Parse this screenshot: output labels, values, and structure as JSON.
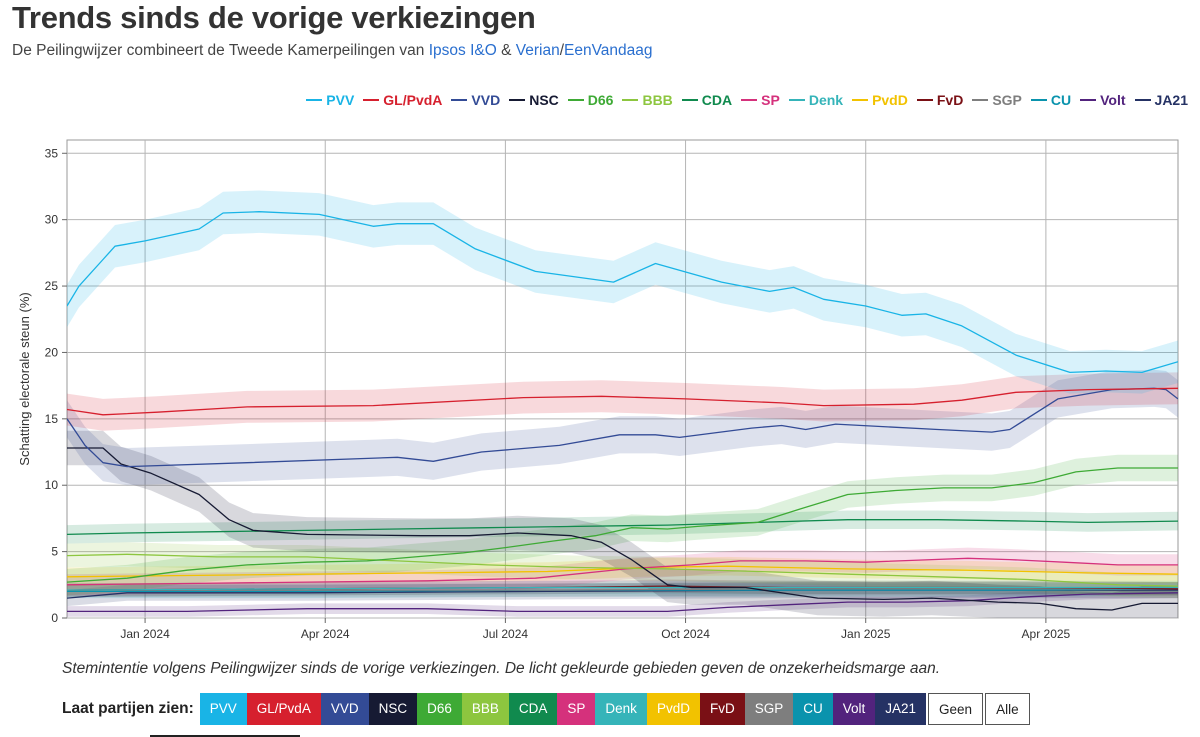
{
  "title": "Trends sinds de vorige verkiezingen",
  "subtitle": {
    "prefix": "De Peilingwijzer combineert de Tweede Kamerpeilingen van",
    "source1": "Ipsos I&O",
    "amp": "&",
    "source2": "Verian",
    "slash": "/",
    "source3": "EenVandaag"
  },
  "parties": [
    {
      "name": "PVV",
      "color": "#19b4e6"
    },
    {
      "name": "GL/PvdA",
      "color": "#d6202e"
    },
    {
      "name": "VVD",
      "color": "#334b96"
    },
    {
      "name": "NSC",
      "color": "#161a33"
    },
    {
      "name": "D66",
      "color": "#3eaa35"
    },
    {
      "name": "BBB",
      "color": "#8dc63f"
    },
    {
      "name": "CDA",
      "color": "#108a4e"
    },
    {
      "name": "SP",
      "color": "#d5317c"
    },
    {
      "name": "Denk",
      "color": "#35b4b9"
    },
    {
      "name": "PvdD",
      "color": "#f2c200"
    },
    {
      "name": "FvD",
      "color": "#7a1015"
    },
    {
      "name": "SGP",
      "color": "#7e7e7e"
    },
    {
      "name": "CU",
      "color": "#0a93ad"
    },
    {
      "name": "Volt",
      "color": "#52237d"
    },
    {
      "name": "JA21",
      "color": "#253264"
    }
  ],
  "filter_label": "Laat partijen zien:",
  "filter_extra": [
    "Geen",
    "Alle"
  ],
  "caption": "Stemintentie volgens Peilingwijzer sinds de vorige verkiezingen. De licht gekleurde gebieden geven de onzekerheidsmarge aan.",
  "chart_data": {
    "type": "line",
    "title": "Trends sinds de vorige verkiezingen",
    "xlabel": "",
    "ylabel": "Schatting electorale steun (%)",
    "x_unit": "months since 2023-11-22",
    "xlim": [
      0,
      18.5
    ],
    "ylim": [
      0,
      36
    ],
    "yticks": [
      0,
      5,
      10,
      15,
      20,
      25,
      30,
      35
    ],
    "xticks": [
      {
        "x": 1.3,
        "label": "Jan 2024"
      },
      {
        "x": 4.3,
        "label": "Apr 2024"
      },
      {
        "x": 7.3,
        "label": "Jul 2024"
      },
      {
        "x": 10.3,
        "label": "Oct 2024"
      },
      {
        "x": 13.3,
        "label": "Jan 2025"
      },
      {
        "x": 16.3,
        "label": "Apr 2025"
      }
    ],
    "band_note": "De licht gekleurde gebieden geven de onzekerheidsmarge aan.",
    "series": [
      {
        "name": "PVV",
        "margin": 1.6,
        "points": [
          [
            0,
            23.5
          ],
          [
            0.2,
            25
          ],
          [
            0.6,
            27
          ],
          [
            0.8,
            28
          ],
          [
            1.3,
            28.4
          ],
          [
            2.2,
            29.3
          ],
          [
            2.6,
            30.5
          ],
          [
            3.2,
            30.6
          ],
          [
            4.2,
            30.4
          ],
          [
            5.1,
            29.5
          ],
          [
            5.5,
            29.7
          ],
          [
            6.1,
            29.7
          ],
          [
            6.8,
            27.8
          ],
          [
            7.8,
            26.1
          ],
          [
            9.1,
            25.3
          ],
          [
            9.8,
            26.7
          ],
          [
            10.9,
            25.3
          ],
          [
            11.7,
            24.6
          ],
          [
            12.1,
            24.9
          ],
          [
            12.6,
            24
          ],
          [
            13.3,
            23.5
          ],
          [
            13.9,
            22.8
          ],
          [
            14.3,
            22.9
          ],
          [
            14.9,
            22
          ],
          [
            15.8,
            19.8
          ],
          [
            16.7,
            18.5
          ],
          [
            17.3,
            18.6
          ],
          [
            17.9,
            18.5
          ],
          [
            18.5,
            19.3
          ]
        ]
      },
      {
        "name": "GL/PvdA",
        "margin": 1.2,
        "points": [
          [
            0,
            15.7
          ],
          [
            0.6,
            15.3
          ],
          [
            1.5,
            15.5
          ],
          [
            3,
            15.9
          ],
          [
            5.1,
            16
          ],
          [
            7.6,
            16.6
          ],
          [
            8.9,
            16.7
          ],
          [
            10.3,
            16.5
          ],
          [
            11.9,
            16.2
          ],
          [
            12.6,
            16
          ],
          [
            14.1,
            16.1
          ],
          [
            14.9,
            16.4
          ],
          [
            15.8,
            17
          ],
          [
            17,
            17.2
          ],
          [
            18.5,
            17.3
          ]
        ]
      },
      {
        "name": "VVD",
        "margin": 1.4,
        "points": [
          [
            0,
            15
          ],
          [
            0.3,
            13
          ],
          [
            0.6,
            11.7
          ],
          [
            1,
            11.4
          ],
          [
            3,
            11.7
          ],
          [
            5.5,
            12.1
          ],
          [
            6.1,
            11.8
          ],
          [
            6.9,
            12.5
          ],
          [
            8.2,
            13
          ],
          [
            9.2,
            13.8
          ],
          [
            9.8,
            13.8
          ],
          [
            10.2,
            13.6
          ],
          [
            11.4,
            14.3
          ],
          [
            11.9,
            14.5
          ],
          [
            12.3,
            14.2
          ],
          [
            12.8,
            14.6
          ],
          [
            14.5,
            14.2
          ],
          [
            15.4,
            14
          ],
          [
            15.7,
            14.2
          ],
          [
            16.5,
            16.5
          ],
          [
            17.4,
            17.2
          ],
          [
            18.1,
            17.3
          ],
          [
            18.3,
            17.2
          ],
          [
            18.5,
            16.5
          ]
        ]
      },
      {
        "name": "NSC",
        "margin": 1.3,
        "points": [
          [
            0,
            12.8
          ],
          [
            0.6,
            12.8
          ],
          [
            0.9,
            11.6
          ],
          [
            1.4,
            10.9
          ],
          [
            2.2,
            9.3
          ],
          [
            2.7,
            7.4
          ],
          [
            3.1,
            6.6
          ],
          [
            4,
            6.3
          ],
          [
            5.9,
            6.2
          ],
          [
            6.7,
            6.2
          ],
          [
            7.5,
            6.4
          ],
          [
            8.4,
            6.2
          ],
          [
            8.9,
            5.7
          ],
          [
            9.4,
            4.4
          ],
          [
            10,
            2.5
          ],
          [
            10.4,
            2.3
          ],
          [
            11.3,
            2.3
          ],
          [
            12.5,
            1.5
          ],
          [
            13.6,
            1.4
          ],
          [
            14.4,
            1.5
          ],
          [
            15.5,
            1.2
          ],
          [
            16.2,
            1.1
          ],
          [
            16.8,
            0.7
          ],
          [
            17.4,
            0.6
          ],
          [
            17.9,
            1.1
          ],
          [
            18.5,
            1.1
          ]
        ]
      },
      {
        "name": "D66",
        "margin": 1.0,
        "points": [
          [
            0,
            2.7
          ],
          [
            1,
            3
          ],
          [
            2,
            3.6
          ],
          [
            3,
            4
          ],
          [
            4,
            4.2
          ],
          [
            5,
            4.3
          ],
          [
            5.8,
            4.6
          ],
          [
            6.6,
            4.9
          ],
          [
            7.3,
            5.3
          ],
          [
            8.1,
            5.8
          ],
          [
            8.8,
            6.2
          ],
          [
            9.4,
            6.8
          ],
          [
            10,
            6.7
          ],
          [
            10.5,
            6.9
          ],
          [
            11.5,
            7.2
          ],
          [
            12.2,
            8.2
          ],
          [
            13,
            9.3
          ],
          [
            13.8,
            9.6
          ],
          [
            14.6,
            9.8
          ],
          [
            15.4,
            9.8
          ],
          [
            16.1,
            10.2
          ],
          [
            16.8,
            11
          ],
          [
            17.5,
            11.3
          ],
          [
            18.5,
            11.3
          ]
        ]
      },
      {
        "name": "BBB",
        "margin": 0.9,
        "points": [
          [
            0,
            4.7
          ],
          [
            1,
            4.8
          ],
          [
            2.5,
            4.6
          ],
          [
            4,
            4.6
          ],
          [
            5.5,
            4.3
          ],
          [
            7,
            4.0
          ],
          [
            8.5,
            3.8
          ],
          [
            10,
            3.7
          ],
          [
            11.5,
            3.5
          ],
          [
            13,
            3.3
          ],
          [
            14.5,
            3.1
          ],
          [
            16,
            2.9
          ],
          [
            17.5,
            2.5
          ],
          [
            18.5,
            2.4
          ]
        ]
      },
      {
        "name": "CDA",
        "margin": 0.7,
        "points": [
          [
            0,
            6.3
          ],
          [
            1,
            6.4
          ],
          [
            2.5,
            6.5
          ],
          [
            4,
            6.6
          ],
          [
            5.5,
            6.7
          ],
          [
            7,
            6.8
          ],
          [
            8.5,
            6.9
          ],
          [
            10,
            7
          ],
          [
            11.5,
            7.2
          ],
          [
            13,
            7.4
          ],
          [
            14.5,
            7.4
          ],
          [
            16,
            7.3
          ],
          [
            17,
            7.2
          ],
          [
            18.5,
            7.3
          ]
        ]
      },
      {
        "name": "SP",
        "margin": 0.8,
        "points": [
          [
            0,
            2.5
          ],
          [
            2,
            2.6
          ],
          [
            4,
            2.7
          ],
          [
            6,
            2.8
          ],
          [
            7.8,
            3
          ],
          [
            9.3,
            3.7
          ],
          [
            10.4,
            4
          ],
          [
            11.2,
            4.3
          ],
          [
            12.3,
            4.3
          ],
          [
            13.3,
            4.2
          ],
          [
            14.4,
            4.4
          ],
          [
            15,
            4.5
          ],
          [
            15.7,
            4.4
          ],
          [
            16.6,
            4.2
          ],
          [
            17.5,
            4
          ],
          [
            18.5,
            4
          ]
        ]
      },
      {
        "name": "Denk",
        "margin": 0.5,
        "points": [
          [
            0,
            2.1
          ],
          [
            4,
            2.2
          ],
          [
            8,
            2.3
          ],
          [
            12,
            2.3
          ],
          [
            16,
            2.3
          ],
          [
            18.5,
            2.3
          ]
        ]
      },
      {
        "name": "PvdD",
        "margin": 0.7,
        "points": [
          [
            0,
            3.1
          ],
          [
            2,
            3.2
          ],
          [
            4,
            3.3
          ],
          [
            6,
            3.4
          ],
          [
            8,
            3.5
          ],
          [
            9.6,
            3.8
          ],
          [
            11,
            3.9
          ],
          [
            13,
            3.7
          ],
          [
            15,
            3.6
          ],
          [
            17,
            3.4
          ],
          [
            18.5,
            3.3
          ]
        ]
      },
      {
        "name": "FvD",
        "margin": 0.5,
        "points": [
          [
            0,
            2.1
          ],
          [
            4,
            2.2
          ],
          [
            8,
            2.3
          ],
          [
            10,
            2.4
          ],
          [
            12,
            2.3
          ],
          [
            14,
            2.3
          ],
          [
            16,
            2.3
          ],
          [
            18.5,
            2.2
          ]
        ]
      },
      {
        "name": "SGP",
        "margin": 0.5,
        "points": [
          [
            0,
            2.1
          ],
          [
            4,
            2.1
          ],
          [
            8,
            2.1
          ],
          [
            12,
            2.2
          ],
          [
            16,
            2.2
          ],
          [
            18.5,
            2.2
          ]
        ]
      },
      {
        "name": "CU",
        "margin": 0.5,
        "points": [
          [
            0,
            2.0
          ],
          [
            4,
            2.0
          ],
          [
            8,
            2.1
          ],
          [
            12,
            2.1
          ],
          [
            16,
            2.1
          ],
          [
            18.5,
            2.2
          ]
        ]
      },
      {
        "name": "Volt",
        "margin": 0.4,
        "points": [
          [
            0,
            0.5
          ],
          [
            2,
            0.5
          ],
          [
            4,
            0.7
          ],
          [
            6,
            0.7
          ],
          [
            7.5,
            0.5
          ],
          [
            9,
            0.5
          ],
          [
            10,
            0.5
          ],
          [
            11,
            0.8
          ],
          [
            12,
            1
          ],
          [
            13,
            1.2
          ],
          [
            14,
            1.2
          ],
          [
            15,
            1.3
          ],
          [
            16,
            1.6
          ],
          [
            17,
            1.8
          ],
          [
            18.5,
            1.9
          ]
        ]
      },
      {
        "name": "JA21",
        "margin": 0.6,
        "points": [
          [
            0,
            1.5
          ],
          [
            1,
            1.9
          ],
          [
            4,
            1.9
          ],
          [
            8,
            2.0
          ],
          [
            12,
            2.1
          ],
          [
            14,
            2.1
          ],
          [
            16,
            2.1
          ],
          [
            18.5,
            2.1
          ]
        ]
      }
    ]
  }
}
